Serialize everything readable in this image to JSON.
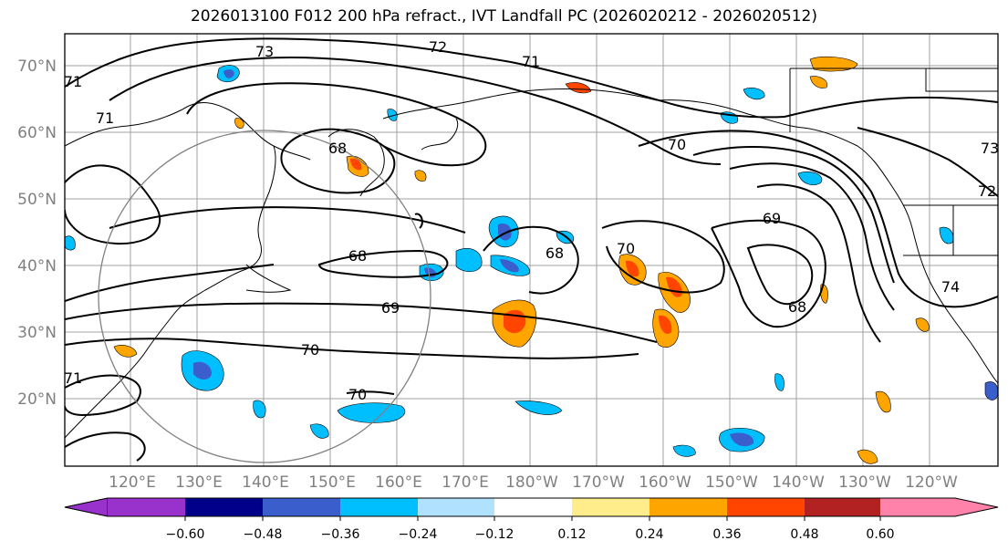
{
  "title": "2026013100 F012 200 hPa refract., IVT Landfall PC (2026020212 - 2026020512)",
  "map": {
    "lat_labels": [
      "70°N",
      "60°N",
      "50°N",
      "40°N",
      "30°N",
      "20°N"
    ],
    "lon_labels": [
      "120°E",
      "130°E",
      "140°E",
      "150°E",
      "160°E",
      "170°E",
      "180°W",
      "170°W",
      "160°W",
      "150°W",
      "140°W",
      "130°W",
      "120°W"
    ],
    "contour_labels": [
      "72",
      "71",
      "70",
      "71",
      "68",
      "68",
      "69",
      "70",
      "70",
      "68",
      "70",
      "69",
      "68",
      "74",
      "72",
      "73",
      "71",
      "71",
      "73"
    ]
  },
  "colorbar": {
    "ticks": [
      "−0.60",
      "−0.48",
      "−0.36",
      "−0.24",
      "−0.12",
      "0.12",
      "0.24",
      "0.36",
      "0.48",
      "0.60"
    ],
    "colors": [
      "#9932cc",
      "#00008b",
      "#3a5fcd",
      "#00bfff",
      "#b0e2ff",
      "#ffffff",
      "#ffec8b",
      "#ffa500",
      "#ff4500",
      "#b22222",
      "#ff82ab"
    ]
  }
}
